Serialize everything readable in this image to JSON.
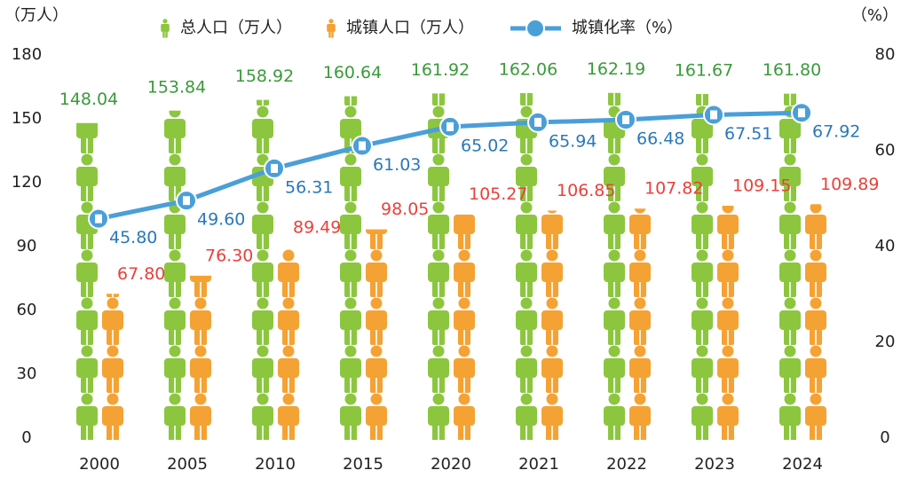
{
  "chart_data": {
    "type": "pictograph-bar-line",
    "y_label": "（万人）",
    "y2_label": "（%）",
    "categories": [
      "2000",
      "2005",
      "2010",
      "2015",
      "2020",
      "2021",
      "2022",
      "2023",
      "2024"
    ],
    "ylim": [
      0,
      180
    ],
    "yticks": [
      0,
      30,
      60,
      90,
      120,
      150,
      180
    ],
    "y2lim": [
      0,
      80
    ],
    "y2ticks": [
      0,
      20,
      40,
      60,
      80
    ],
    "series": [
      {
        "name": "总人口（万人）",
        "color": "#8cc63f",
        "label_color": "#3a9a3a",
        "values": [
          148.04,
          153.84,
          158.92,
          160.64,
          161.92,
          162.06,
          162.19,
          161.67,
          161.8
        ],
        "value_labels": [
          "148.04",
          "153.84",
          "158.92",
          "160.64",
          "161.92",
          "162.06",
          "162.19",
          "161.67",
          "161.80"
        ]
      },
      {
        "name": "城镇人口（万人）",
        "color": "#f5a234",
        "label_color": "#e8413c",
        "values": [
          67.8,
          76.3,
          89.49,
          98.05,
          105.27,
          106.85,
          107.82,
          109.15,
          109.89
        ],
        "value_labels": [
          "67.80",
          "76.30",
          "89.49",
          "98.05",
          "105.27",
          "106.85",
          "107.82",
          "109.15",
          "109.89"
        ]
      },
      {
        "name": "城镇化率（%）",
        "color": "#4a9fd8",
        "label_color": "#2a78b8",
        "axis": "y2",
        "values": [
          45.8,
          49.6,
          56.31,
          61.03,
          65.02,
          65.94,
          66.48,
          67.51,
          67.92
        ],
        "value_labels": [
          "45.80",
          "49.60",
          "56.31",
          "61.03",
          "65.02",
          "65.94",
          "66.48",
          "67.51",
          "67.92"
        ]
      }
    ]
  }
}
